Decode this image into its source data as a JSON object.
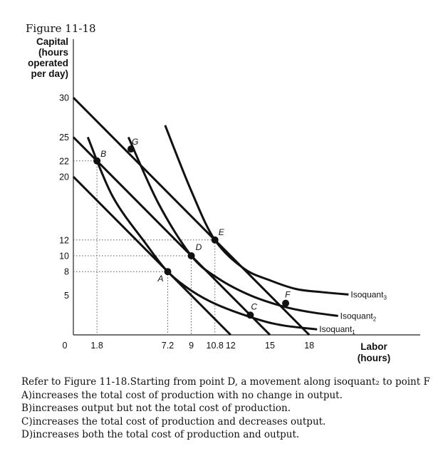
{
  "figure_caption": "Figure 11-18",
  "chart_data": {
    "type": "line",
    "title": "",
    "ylabel_lines": [
      "Capital",
      "(hours",
      "operated",
      "per day)"
    ],
    "xlabel_lines": [
      "Labor",
      "(hours)"
    ],
    "xlim": [
      0,
      18
    ],
    "ylim": [
      0,
      30
    ],
    "x_ticks": [
      {
        "value": 1.8,
        "label": "1.8"
      },
      {
        "value": 7.2,
        "label": "7.2"
      },
      {
        "value": 9,
        "label": "9"
      },
      {
        "value": 10.8,
        "label": "10.8"
      },
      {
        "value": 12,
        "label": "12"
      },
      {
        "value": 15,
        "label": "15"
      },
      {
        "value": 18,
        "label": "18"
      }
    ],
    "y_ticks": [
      {
        "value": 5,
        "label": "5"
      },
      {
        "value": 8,
        "label": "8"
      },
      {
        "value": 10,
        "label": "10"
      },
      {
        "value": 12,
        "label": "12"
      },
      {
        "value": 20,
        "label": "20"
      },
      {
        "value": 22,
        "label": "22"
      },
      {
        "value": 25,
        "label": "25"
      },
      {
        "value": 30,
        "label": "30"
      }
    ],
    "origin_label": "0",
    "isoquants": [
      {
        "name": "Isoquant",
        "subscript": "1",
        "points": [
          [
            1.1,
            25
          ],
          [
            3.0,
            17.5
          ],
          [
            5.5,
            11.6
          ],
          [
            7.2,
            8
          ],
          [
            9.0,
            5.6
          ],
          [
            11.0,
            3.8
          ],
          [
            14.0,
            2.0
          ],
          [
            16.0,
            1.2
          ],
          [
            18.6,
            0.7
          ]
        ]
      },
      {
        "name": "Isoquant",
        "subscript": "2",
        "points": [
          [
            4.2,
            25
          ],
          [
            6.5,
            16.6
          ],
          [
            9.0,
            10
          ],
          [
            11.0,
            7.2
          ],
          [
            13.5,
            5.0
          ],
          [
            16.0,
            3.6
          ],
          [
            18.0,
            2.9
          ],
          [
            20.2,
            2.4
          ]
        ]
      },
      {
        "name": "Isoquant",
        "subscript": "3",
        "points": [
          [
            7.0,
            26.5
          ],
          [
            9.0,
            18.2
          ],
          [
            10.8,
            12
          ],
          [
            13.0,
            8.4
          ],
          [
            15.0,
            6.9
          ],
          [
            17.0,
            5.8
          ],
          [
            19.0,
            5.4
          ],
          [
            21.0,
            5.1
          ]
        ]
      }
    ],
    "isocost_lines": [
      {
        "from": [
          0,
          20
        ],
        "to": [
          12,
          0
        ]
      },
      {
        "from": [
          0,
          25
        ],
        "to": [
          15,
          0
        ]
      },
      {
        "from": [
          0,
          30
        ],
        "to": [
          18,
          0
        ]
      }
    ],
    "points": [
      {
        "label": "A",
        "x": 7.2,
        "y": 8
      },
      {
        "label": "B",
        "x": 1.8,
        "y": 22
      },
      {
        "label": "C",
        "x": 13.5,
        "y": 2.5
      },
      {
        "label": "D",
        "x": 9,
        "y": 10
      },
      {
        "label": "E",
        "x": 10.8,
        "y": 12
      },
      {
        "label": "F",
        "x": 16.2,
        "y": 4
      },
      {
        "label": "G",
        "x": 4.4,
        "y": 23.5
      }
    ],
    "dotted_guides": [
      {
        "x": 1.8,
        "y": 22
      },
      {
        "x": 7.2,
        "y": 8
      },
      {
        "x": 9,
        "y": 10
      },
      {
        "x": 10.8,
        "y": 12
      }
    ]
  },
  "question": {
    "prompt": "Refer to Figure 11-18.Starting from point D, a movement along isoquant₂ to point F",
    "options": [
      "A)increases the total cost of production with no change in output.",
      "B)increases output but not the total cost of production.",
      "C)increases the total cost of production and decreases output.",
      "D)increases both the total cost of production and output."
    ]
  }
}
